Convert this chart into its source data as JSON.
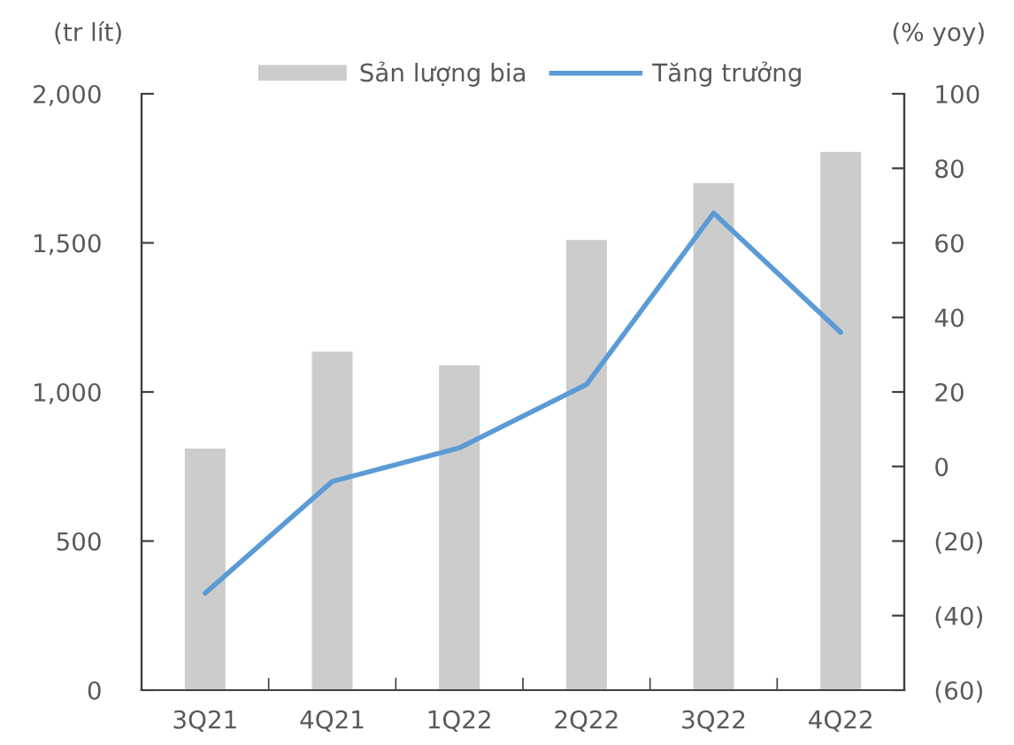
{
  "chart_data": {
    "type": "bar",
    "ylabel": "(tr lít)",
    "y2label": "(% yoy)",
    "categories": [
      "3Q21",
      "4Q21",
      "1Q22",
      "2Q22",
      "3Q22",
      "4Q22"
    ],
    "series": [
      {
        "name": "Sản lượng bia",
        "color": "#cccccc",
        "values": [
          810,
          1135,
          1090,
          1510,
          1700,
          1805
        ]
      },
      {
        "name": "Tăng trưởng",
        "type": "line",
        "axis": "y2",
        "color": "#5b9bd5",
        "values": [
          -34,
          -4,
          5,
          22,
          68,
          36
        ]
      }
    ],
    "ylim": [
      0,
      2000
    ],
    "yticks": [
      0,
      500,
      {
        "value": 1000,
        "label": "1,000"
      },
      {
        "value": 1500,
        "label": "1,500"
      },
      {
        "value": 2000,
        "label": "2,000"
      }
    ],
    "y2lim": [
      -60,
      100
    ],
    "y2ticks": [
      {
        "value": -60,
        "label": "(60)"
      },
      {
        "value": -40,
        "label": "(40)"
      },
      {
        "value": -20,
        "label": "(20)"
      },
      0,
      20,
      40,
      60,
      80,
      100
    ],
    "legend": "top",
    "marker": "none",
    "line_style": "solid"
  }
}
